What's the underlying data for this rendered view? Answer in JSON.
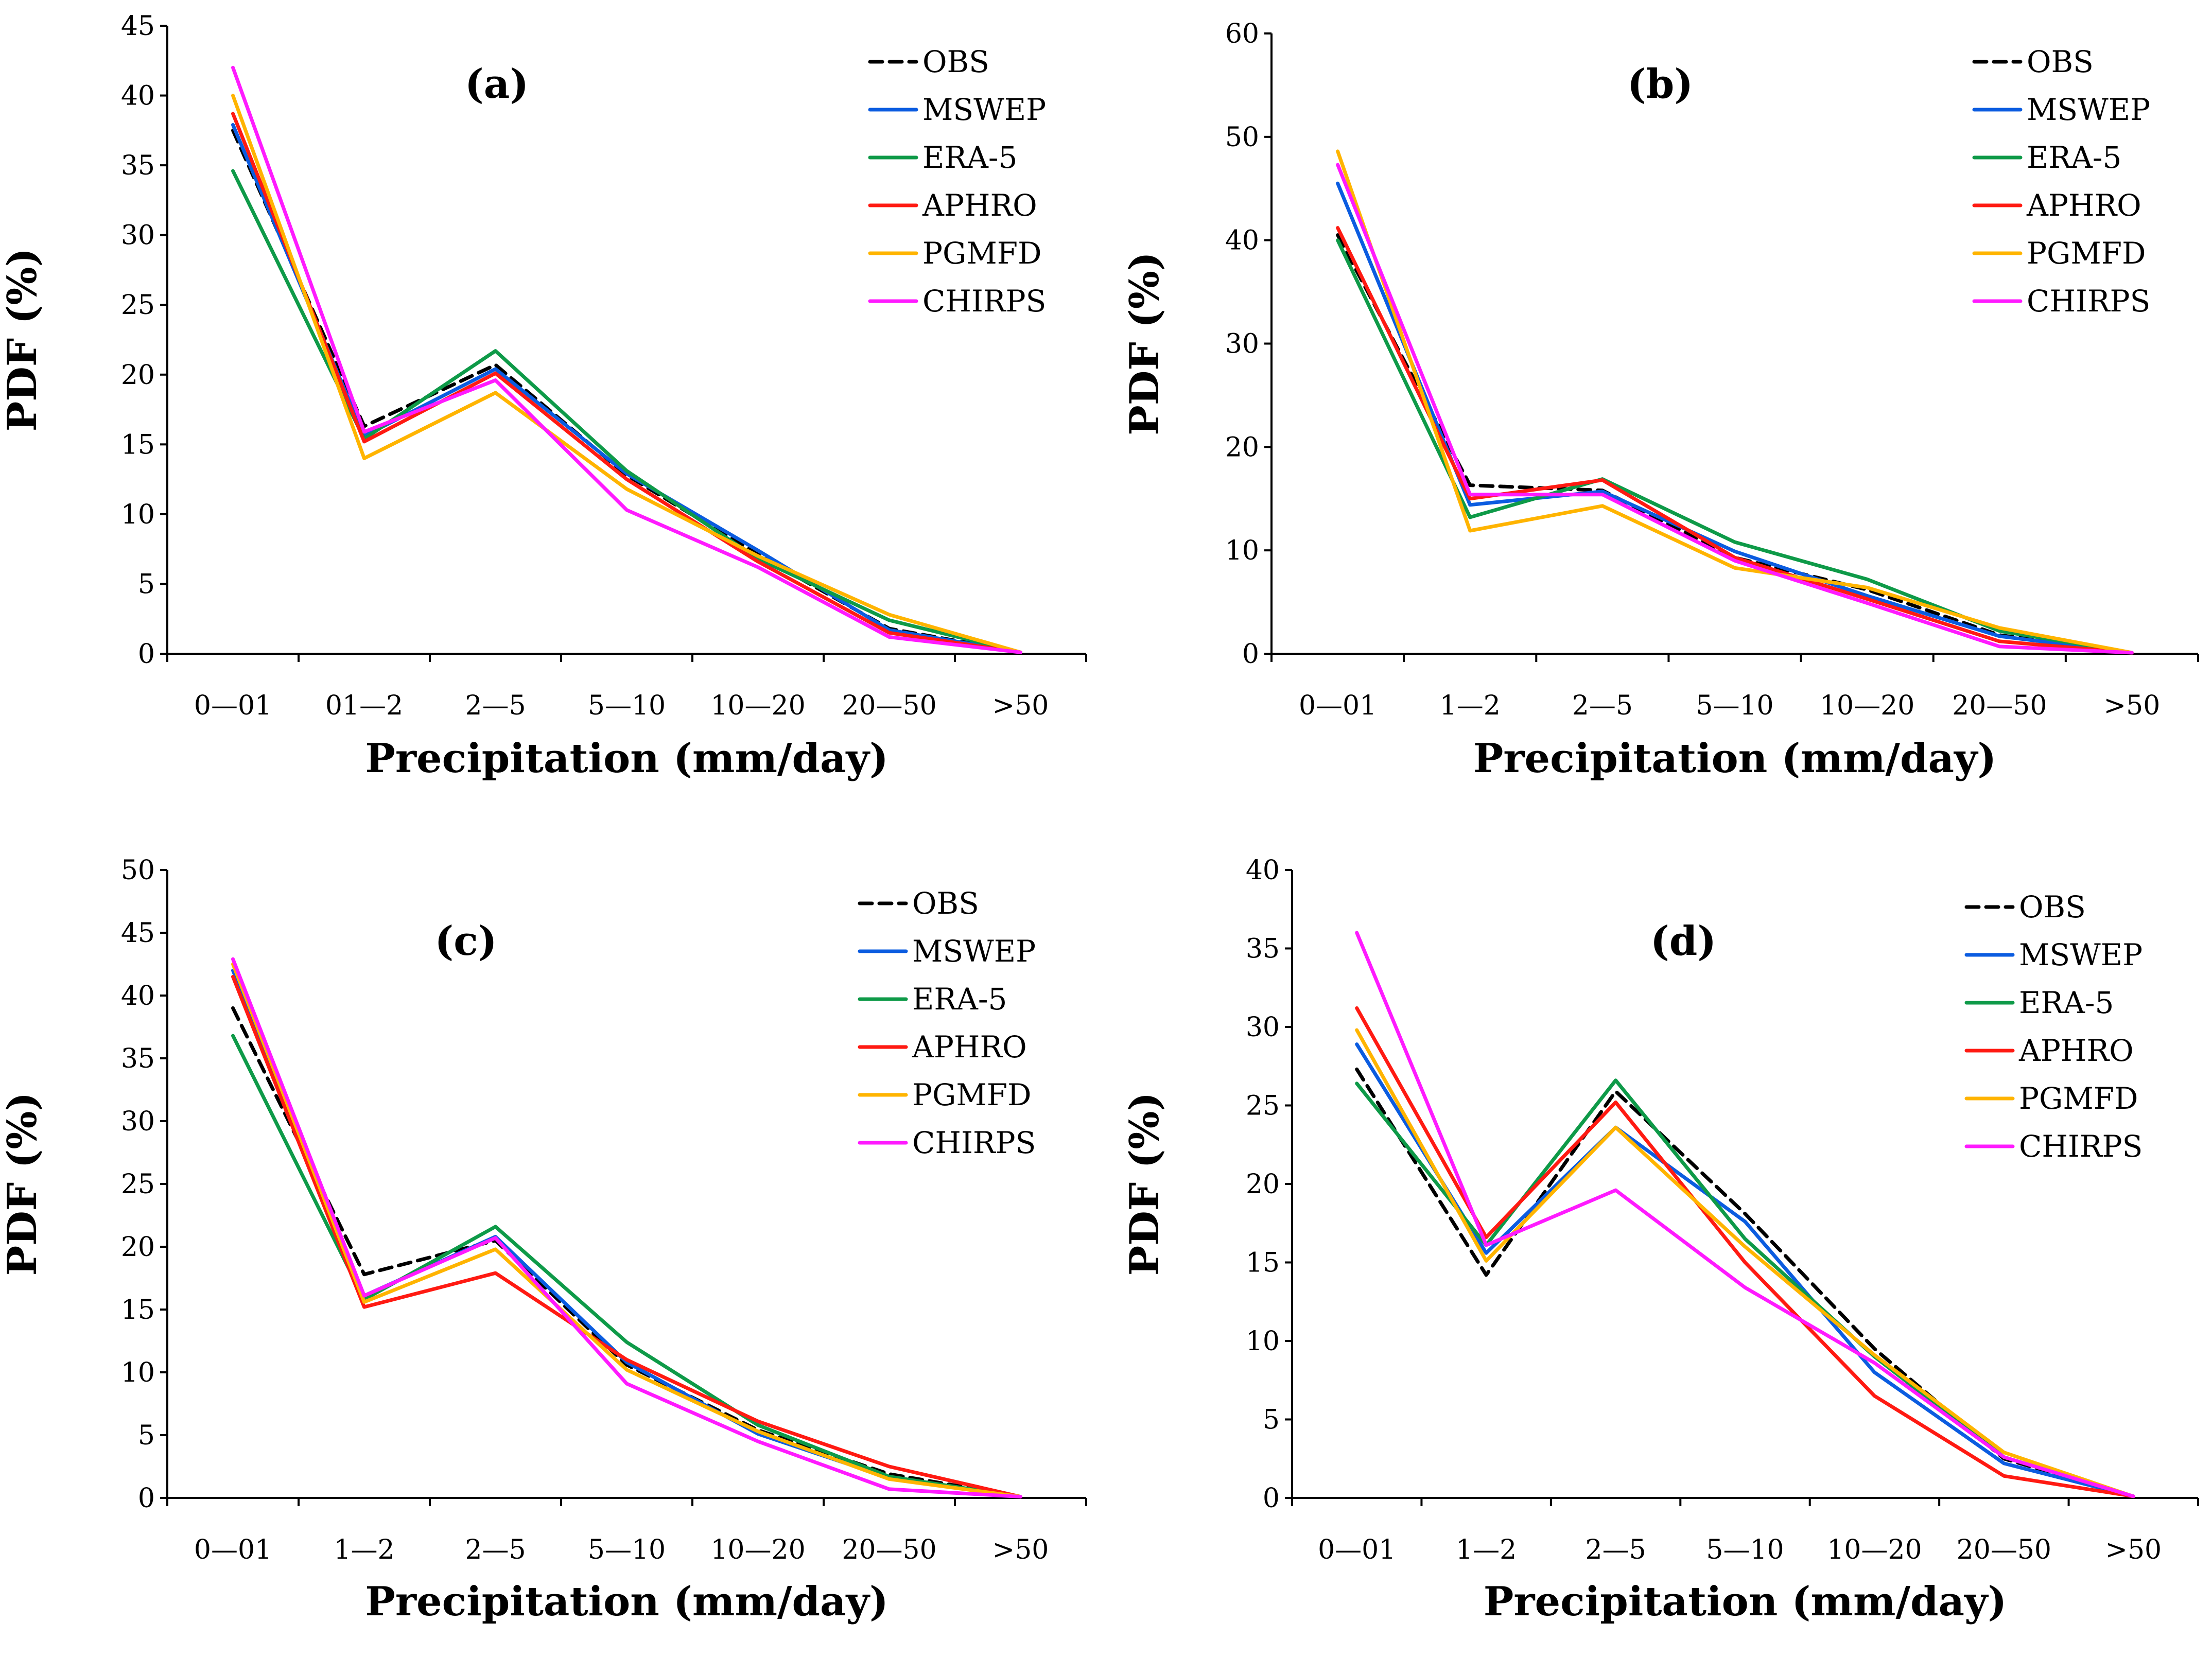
{
  "colors": {
    "OBS": "#000000",
    "MSWEP": "#0b5ce0",
    "ERA-5": "#0e9a48",
    "APHRO": "#ff1a12",
    "PGMFD": "#ffb400",
    "CHIRPS": "#ff1aff"
  },
  "legend_order": [
    "OBS",
    "MSWEP",
    "ERA-5",
    "APHRO",
    "PGMFD",
    "CHIRPS"
  ],
  "chart_data": [
    {
      "type": "line",
      "panel": "(a)",
      "xlabel": "Precipitation (mm/day)",
      "ylabel": "PDF (%)",
      "categories": [
        "0—01",
        "01—2",
        "2—5",
        "5—10",
        "10—20",
        "20—50",
        ">50"
      ],
      "ylim": [
        0,
        45
      ],
      "yticks": [
        0,
        5,
        10,
        15,
        20,
        25,
        30,
        35,
        40,
        45
      ],
      "series": [
        {
          "name": "OBS",
          "values": [
            37.5,
            16.3,
            20.7,
            12.8,
            7.1,
            1.8,
            0.1
          ]
        },
        {
          "name": "MSWEP",
          "values": [
            37.9,
            15.6,
            20.4,
            12.9,
            7.4,
            1.7,
            0.1
          ]
        },
        {
          "name": "ERA-5",
          "values": [
            34.6,
            15.4,
            21.7,
            13.1,
            6.8,
            2.4,
            0.1
          ]
        },
        {
          "name": "APHRO",
          "values": [
            38.7,
            15.2,
            20.1,
            12.5,
            6.6,
            1.5,
            0.1
          ]
        },
        {
          "name": "PGMFD",
          "values": [
            40.0,
            14.0,
            18.7,
            11.8,
            7.0,
            2.8,
            0.1
          ]
        },
        {
          "name": "CHIRPS",
          "values": [
            42.0,
            15.9,
            19.6,
            10.3,
            6.2,
            1.2,
            0.1
          ]
        }
      ]
    },
    {
      "type": "line",
      "panel": "(b)",
      "xlabel": "Precipitation (mm/day)",
      "ylabel": "PDF (%)",
      "categories": [
        "0—01",
        "1—2",
        "2—5",
        "5—10",
        "10—20",
        "20—50",
        ">50"
      ],
      "ylim": [
        0,
        60
      ],
      "yticks": [
        0,
        10,
        20,
        30,
        40,
        50,
        60
      ],
      "series": [
        {
          "name": "OBS",
          "values": [
            40.5,
            16.3,
            15.8,
            9.3,
            6.2,
            1.8,
            0.1
          ]
        },
        {
          "name": "MSWEP",
          "values": [
            45.5,
            14.4,
            15.7,
            9.9,
            5.6,
            1.7,
            0.1
          ]
        },
        {
          "name": "ERA-5",
          "values": [
            40.0,
            13.2,
            16.9,
            10.8,
            7.2,
            2.2,
            0.1
          ]
        },
        {
          "name": "APHRO",
          "values": [
            41.2,
            15.0,
            16.8,
            9.3,
            5.3,
            1.2,
            0.1
          ]
        },
        {
          "name": "PGMFD",
          "values": [
            48.6,
            11.9,
            14.3,
            8.3,
            6.4,
            2.5,
            0.1
          ]
        },
        {
          "name": "CHIRPS",
          "values": [
            47.3,
            15.4,
            15.4,
            9.0,
            4.9,
            0.7,
            0.1
          ]
        }
      ]
    },
    {
      "type": "line",
      "panel": "(c)",
      "xlabel": "Precipitation (mm/day)",
      "ylabel": "PDF (%)",
      "categories": [
        "0—01",
        "1—2",
        "2—5",
        "5—10",
        "10—20",
        "20—50",
        ">50"
      ],
      "ylim": [
        0,
        50
      ],
      "yticks": [
        0,
        5,
        10,
        15,
        20,
        25,
        30,
        35,
        40,
        45,
        50
      ],
      "series": [
        {
          "name": "OBS",
          "values": [
            39.0,
            17.8,
            20.5,
            10.6,
            5.4,
            1.9,
            0.1
          ]
        },
        {
          "name": "MSWEP",
          "values": [
            42.0,
            16.1,
            20.8,
            10.8,
            5.1,
            1.6,
            0.1
          ]
        },
        {
          "name": "ERA-5",
          "values": [
            36.8,
            15.8,
            21.6,
            12.4,
            5.8,
            1.7,
            0.1
          ]
        },
        {
          "name": "APHRO",
          "values": [
            41.5,
            15.2,
            17.9,
            11.0,
            6.1,
            2.5,
            0.1
          ]
        },
        {
          "name": "PGMFD",
          "values": [
            42.5,
            15.6,
            19.8,
            10.2,
            5.3,
            1.5,
            0.1
          ]
        },
        {
          "name": "CHIRPS",
          "values": [
            42.9,
            16.1,
            20.7,
            9.1,
            4.5,
            0.7,
            0.1
          ]
        }
      ]
    },
    {
      "type": "line",
      "panel": "(d)",
      "xlabel": "Precipitation (mm/day)",
      "ylabel": "PDF (%)",
      "categories": [
        "0—01",
        "1—2",
        "2—5",
        "5—10",
        "10—20",
        "20—50",
        ">50"
      ],
      "ylim": [
        0,
        40
      ],
      "yticks": [
        0,
        5,
        10,
        15,
        20,
        25,
        30,
        35,
        40
      ],
      "series": [
        {
          "name": "OBS",
          "values": [
            27.3,
            14.2,
            25.9,
            18.1,
            9.5,
            2.5,
            0.1
          ]
        },
        {
          "name": "MSWEP",
          "values": [
            28.9,
            15.6,
            23.6,
            17.6,
            8.0,
            2.2,
            0.1
          ]
        },
        {
          "name": "ERA-5",
          "values": [
            26.4,
            16.1,
            26.6,
            16.5,
            9.0,
            2.6,
            0.1
          ]
        },
        {
          "name": "APHRO",
          "values": [
            31.2,
            16.6,
            25.2,
            15.0,
            6.5,
            1.4,
            0.1
          ]
        },
        {
          "name": "PGMFD",
          "values": [
            29.8,
            15.1,
            23.6,
            16.0,
            9.1,
            2.9,
            0.1
          ]
        },
        {
          "name": "CHIRPS",
          "values": [
            36.0,
            16.1,
            19.6,
            13.4,
            8.6,
            2.6,
            0.1
          ]
        }
      ]
    }
  ]
}
